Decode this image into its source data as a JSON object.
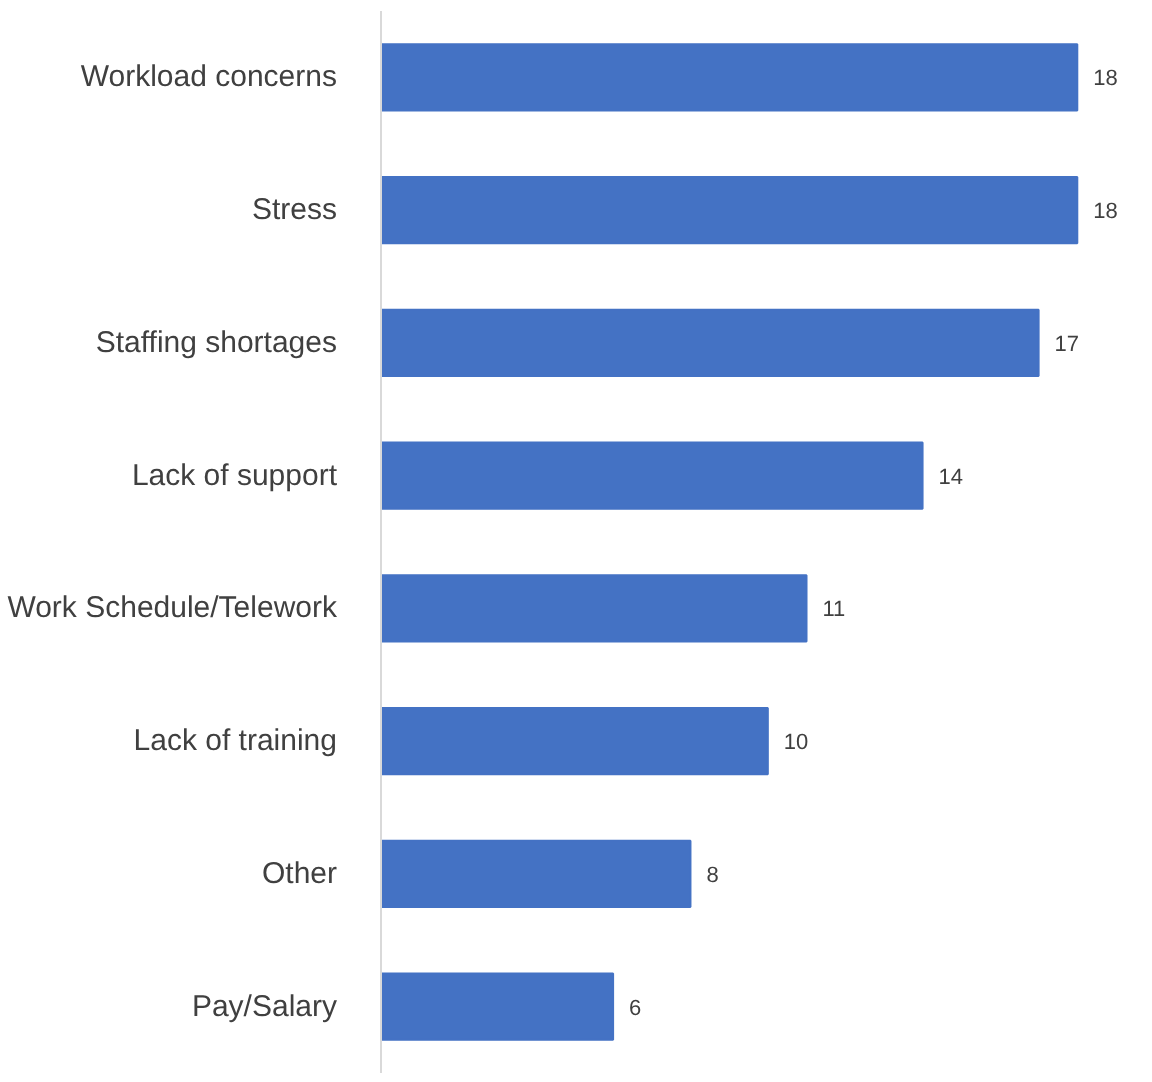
{
  "chart_data": {
    "type": "bar",
    "orientation": "horizontal",
    "categories": [
      "Workload concerns",
      "Stress",
      "Staffing shortages",
      "Lack of support",
      "Work Schedule/Telework",
      "Lack of training",
      "Other",
      "Pay/Salary"
    ],
    "values": [
      18,
      18,
      17,
      14,
      11,
      10,
      8,
      6
    ],
    "color": "#4472c4",
    "data_labels": true,
    "grid": false
  }
}
